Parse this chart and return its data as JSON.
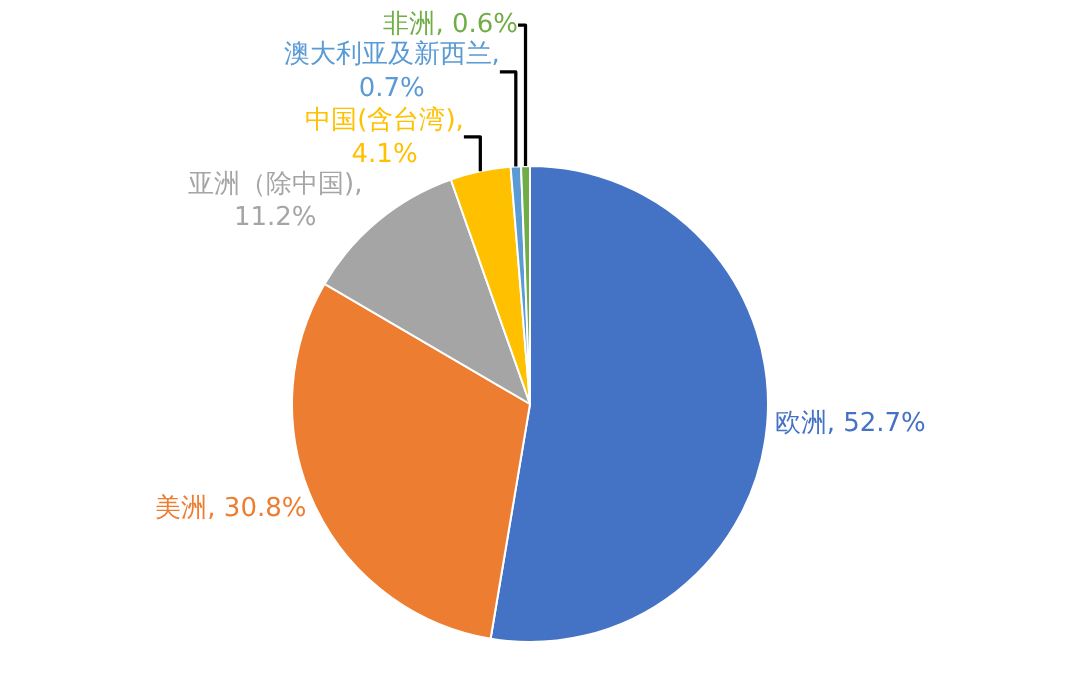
{
  "chart_data": {
    "type": "pie",
    "categories": [
      "欧洲",
      "美洲",
      "亚洲（除中国)",
      "中国(含台湾)",
      "澳大利亚及新西兰",
      "非洲"
    ],
    "values": [
      52.7,
      30.8,
      11.2,
      4.1,
      0.7,
      0.6
    ],
    "colors": [
      "#4472c4",
      "#ed7d31",
      "#a5a5a5",
      "#ffc000",
      "#5b9bd5",
      "#70ad47"
    ],
    "value_labels": [
      ", 52.7%",
      ", 30.8%",
      ",\n11.2%",
      ",\n4.1%",
      ",\n0.7%",
      ", 0.6%"
    ],
    "legend": false
  }
}
